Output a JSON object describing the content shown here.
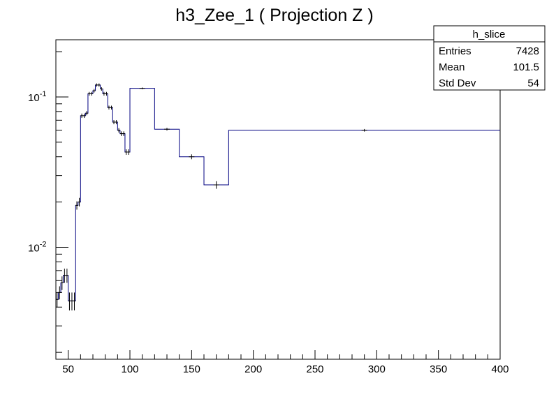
{
  "chart_data": {
    "type": "histogram",
    "title": "h3_Zee_1 ( Projection Z )",
    "xlabel": "",
    "ylabel": "",
    "xlim": [
      40,
      400
    ],
    "ylim": [
      0.0018,
      0.24
    ],
    "yscale": "log",
    "x_ticks": [
      50,
      100,
      150,
      200,
      250,
      300,
      350,
      400
    ],
    "y_ticks": [
      {
        "value": 0.01,
        "base": "10",
        "exp": "-2"
      },
      {
        "value": 0.1,
        "base": "10",
        "exp": "-1"
      }
    ],
    "line_color": "#000080",
    "bins": [
      {
        "lo": 40,
        "hi": 42,
        "y": 0.0045,
        "err": 0.0005
      },
      {
        "lo": 42,
        "hi": 44,
        "y": 0.005,
        "err": 0.0005
      },
      {
        "lo": 44,
        "hi": 46,
        "y": 0.0058,
        "err": 0.0006
      },
      {
        "lo": 46,
        "hi": 48,
        "y": 0.0065,
        "err": 0.0007
      },
      {
        "lo": 48,
        "hi": 50,
        "y": 0.0065,
        "err": 0.0007
      },
      {
        "lo": 50,
        "hi": 52,
        "y": 0.0044,
        "err": 0.0006
      },
      {
        "lo": 52,
        "hi": 54,
        "y": 0.0044,
        "err": 0.0006
      },
      {
        "lo": 54,
        "hi": 56,
        "y": 0.0044,
        "err": 0.0006
      },
      {
        "lo": 56,
        "hi": 58,
        "y": 0.019,
        "err": 0.0012
      },
      {
        "lo": 58,
        "hi": 60,
        "y": 0.02,
        "err": 0.0013
      },
      {
        "lo": 60,
        "hi": 62,
        "y": 0.075,
        "err": 0.0025
      },
      {
        "lo": 62,
        "hi": 64,
        "y": 0.075,
        "err": 0.0025
      },
      {
        "lo": 64,
        "hi": 66,
        "y": 0.078,
        "err": 0.0025
      },
      {
        "lo": 66,
        "hi": 68,
        "y": 0.105,
        "err": 0.003
      },
      {
        "lo": 68,
        "hi": 70,
        "y": 0.105,
        "err": 0.003
      },
      {
        "lo": 70,
        "hi": 72,
        "y": 0.11,
        "err": 0.003
      },
      {
        "lo": 72,
        "hi": 74,
        "y": 0.12,
        "err": 0.003
      },
      {
        "lo": 74,
        "hi": 76,
        "y": 0.12,
        "err": 0.003
      },
      {
        "lo": 76,
        "hi": 78,
        "y": 0.113,
        "err": 0.003
      },
      {
        "lo": 78,
        "hi": 80,
        "y": 0.105,
        "err": 0.003
      },
      {
        "lo": 80,
        "hi": 82,
        "y": 0.105,
        "err": 0.003
      },
      {
        "lo": 82,
        "hi": 84,
        "y": 0.085,
        "err": 0.0025
      },
      {
        "lo": 84,
        "hi": 86,
        "y": 0.085,
        "err": 0.0025
      },
      {
        "lo": 86,
        "hi": 88,
        "y": 0.068,
        "err": 0.0022
      },
      {
        "lo": 88,
        "hi": 90,
        "y": 0.068,
        "err": 0.0022
      },
      {
        "lo": 90,
        "hi": 92,
        "y": 0.06,
        "err": 0.002
      },
      {
        "lo": 92,
        "hi": 94,
        "y": 0.057,
        "err": 0.002
      },
      {
        "lo": 94,
        "hi": 96,
        "y": 0.057,
        "err": 0.002
      },
      {
        "lo": 96,
        "hi": 98,
        "y": 0.043,
        "err": 0.0018
      },
      {
        "lo": 98,
        "hi": 100,
        "y": 0.043,
        "err": 0.0018
      },
      {
        "lo": 100,
        "hi": 120,
        "y": 0.114,
        "err": 0.0015
      },
      {
        "lo": 120,
        "hi": 140,
        "y": 0.061,
        "err": 0.0012
      },
      {
        "lo": 140,
        "hi": 160,
        "y": 0.04,
        "err": 0.0015
      },
      {
        "lo": 160,
        "hi": 180,
        "y": 0.026,
        "err": 0.0015
      },
      {
        "lo": 180,
        "hi": 400,
        "y": 0.06,
        "err": 0.0012
      }
    ]
  },
  "stats_box": {
    "name": "h_slice",
    "rows": [
      {
        "label": "Entries",
        "value": "7428"
      },
      {
        "label": "Mean",
        "value": "101.5"
      },
      {
        "label": "Std Dev",
        "value": "54"
      }
    ]
  }
}
